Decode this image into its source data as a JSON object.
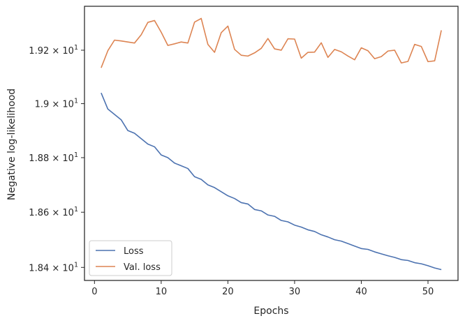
{
  "chart_data": {
    "type": "line",
    "title": "",
    "xlabel": "Epochs",
    "ylabel": "Negative log-likelihood",
    "yscale": "log",
    "xlim": [
      -1.5,
      54.5
    ],
    "ylim": [
      18.353,
      19.366
    ],
    "grid": false,
    "legend_position": "lower-left",
    "x_ticks": [
      {
        "value": 0,
        "label": "0"
      },
      {
        "value": 10,
        "label": "10"
      },
      {
        "value": 20,
        "label": "20"
      },
      {
        "value": 30,
        "label": "30"
      },
      {
        "value": 40,
        "label": "40"
      },
      {
        "value": 50,
        "label": "50"
      }
    ],
    "y_ticks": [
      {
        "value": 18.4,
        "mantissa": "1.84",
        "base": "10",
        "exponent": "1"
      },
      {
        "value": 18.6,
        "mantissa": "1.86",
        "base": "10",
        "exponent": "1"
      },
      {
        "value": 18.8,
        "mantissa": "1.88",
        "base": "10",
        "exponent": "1"
      },
      {
        "value": 19.0,
        "mantissa": "1.9",
        "base": "10",
        "exponent": "1"
      },
      {
        "value": 19.2,
        "mantissa": "1.92",
        "base": "10",
        "exponent": "1"
      }
    ],
    "x": [
      1,
      2,
      3,
      4,
      5,
      6,
      7,
      8,
      9,
      10,
      11,
      12,
      13,
      14,
      15,
      16,
      17,
      18,
      19,
      20,
      21,
      22,
      23,
      24,
      25,
      26,
      27,
      28,
      29,
      30,
      31,
      32,
      33,
      34,
      35,
      36,
      37,
      38,
      39,
      40,
      41,
      42,
      43,
      44,
      45,
      46,
      47,
      48,
      49,
      50,
      51,
      52
    ],
    "series": [
      {
        "name": "Loss",
        "color": "#4c72b0",
        "values": [
          19.04,
          18.98,
          18.96,
          18.94,
          18.9,
          18.89,
          18.87,
          18.85,
          18.84,
          18.81,
          18.8,
          18.78,
          18.77,
          18.76,
          18.73,
          18.72,
          18.7,
          18.69,
          18.675,
          18.66,
          18.65,
          18.635,
          18.63,
          18.61,
          18.605,
          18.59,
          18.585,
          18.57,
          18.565,
          18.553,
          18.546,
          18.536,
          18.53,
          18.518,
          18.51,
          18.5,
          18.495,
          18.486,
          18.477,
          18.468,
          18.465,
          18.456,
          18.449,
          18.442,
          18.436,
          18.428,
          18.425,
          18.417,
          18.413,
          18.406,
          18.398,
          18.392
        ]
      },
      {
        "name": "Val. loss",
        "color": "#dd8452",
        "values": [
          19.134,
          19.198,
          19.238,
          19.235,
          19.231,
          19.227,
          19.258,
          19.305,
          19.312,
          19.268,
          19.218,
          19.224,
          19.231,
          19.227,
          19.306,
          19.32,
          19.222,
          19.192,
          19.266,
          19.291,
          19.203,
          19.181,
          19.178,
          19.19,
          19.207,
          19.244,
          19.205,
          19.2,
          19.243,
          19.242,
          19.17,
          19.192,
          19.193,
          19.228,
          19.173,
          19.203,
          19.194,
          19.178,
          19.164,
          19.209,
          19.198,
          19.168,
          19.176,
          19.197,
          19.2,
          19.152,
          19.158,
          19.222,
          19.214,
          19.157,
          19.16,
          19.275
        ]
      }
    ]
  }
}
